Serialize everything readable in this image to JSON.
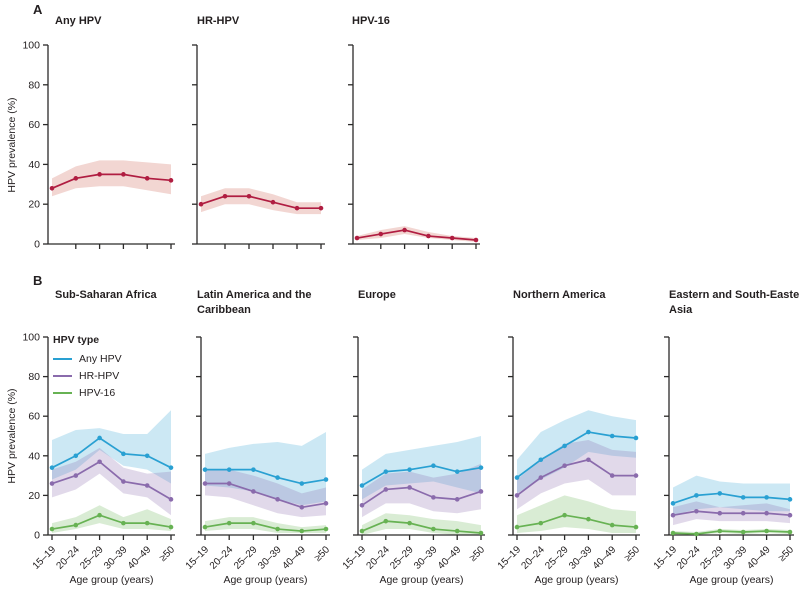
{
  "panels": {
    "a_label": "A",
    "b_label": "B"
  },
  "axes": {
    "y_title": "HPV prevalence (%)",
    "x_title": "Age group (years)",
    "y_ticks": [
      0,
      20,
      40,
      60,
      80,
      100
    ],
    "y_range": [
      0,
      100
    ],
    "grid": "off"
  },
  "categories": [
    "15–19",
    "20–24",
    "25–29",
    "30–39",
    "40–49",
    "≥50"
  ],
  "colors": {
    "red_line": "#b01d41",
    "red_band": "#f2d6d2",
    "any_hpv": "#29a0d2",
    "any_hpv_band": "rgba(41,160,210,0.24)",
    "hr_hpv": "#8a6bac",
    "hr_hpv_band": "rgba(138,107,172,0.26)",
    "hpv16": "#67b253",
    "hpv16_band": "rgba(103,178,83,0.25)"
  },
  "legend": {
    "title": "HPV type",
    "items": [
      {
        "label": "Any HPV",
        "color": "#29a0d2"
      },
      {
        "label": "HR-HPV",
        "color": "#8a6bac"
      },
      {
        "label": "HPV-16",
        "color": "#67b253"
      }
    ]
  },
  "chart_data": [
    {
      "type": "line",
      "panel": "A",
      "title": "Any HPV",
      "xlabel": "",
      "ylabel": "HPV prevalence (%)",
      "ylim": [
        0,
        100
      ],
      "series": [
        {
          "name": "Any HPV",
          "color": "#b01d41",
          "band": "#f2d6d2",
          "values": [
            28,
            33,
            35,
            35,
            33,
            32
          ],
          "lo": [
            24,
            28,
            29,
            29,
            27,
            25
          ],
          "hi": [
            33,
            39,
            42,
            42,
            41,
            40
          ]
        }
      ]
    },
    {
      "type": "line",
      "panel": "A",
      "title": "HR-HPV",
      "xlabel": "",
      "ylabel": "",
      "ylim": [
        0,
        100
      ],
      "series": [
        {
          "name": "HR-HPV",
          "color": "#b01d41",
          "band": "#f2d6d2",
          "values": [
            20,
            24,
            24,
            21,
            18,
            18
          ],
          "lo": [
            16,
            20,
            20,
            17,
            15,
            15
          ],
          "hi": [
            24,
            28,
            28,
            25,
            21,
            21
          ]
        }
      ]
    },
    {
      "type": "line",
      "panel": "A",
      "title": "HPV-16",
      "xlabel": "",
      "ylabel": "",
      "ylim": [
        0,
        100
      ],
      "series": [
        {
          "name": "HPV-16",
          "color": "#b01d41",
          "band": "#f2d6d2",
          "values": [
            3,
            5,
            7,
            4,
            3,
            2
          ],
          "lo": [
            2,
            3,
            5,
            3,
            2,
            1
          ],
          "hi": [
            4,
            7,
            9,
            6,
            4,
            3
          ]
        }
      ]
    },
    {
      "type": "line",
      "panel": "B",
      "title": "Sub-Saharan Africa",
      "xlabel": "Age group (years)",
      "ylabel": "HPV prevalence (%)",
      "ylim": [
        0,
        100
      ],
      "legend_position": "top-left",
      "series": [
        {
          "name": "Any HPV",
          "color": "#29a0d2",
          "band": "rgba(41,160,210,0.24)",
          "values": [
            34,
            40,
            49,
            41,
            40,
            34
          ],
          "lo": [
            28,
            33,
            43,
            35,
            33,
            26
          ],
          "hi": [
            48,
            53,
            54,
            51,
            51,
            63
          ]
        },
        {
          "name": "HR-HPV",
          "color": "#8a6bac",
          "band": "rgba(138,107,172,0.26)",
          "values": [
            26,
            30,
            37,
            27,
            25,
            18
          ],
          "lo": [
            19,
            23,
            31,
            21,
            19,
            10
          ],
          "hi": [
            33,
            37,
            44,
            34,
            31,
            32
          ]
        },
        {
          "name": "HPV-16",
          "color": "#67b253",
          "band": "rgba(103,178,83,0.25)",
          "values": [
            3,
            5,
            10,
            6,
            6,
            4
          ],
          "lo": [
            1,
            3,
            6,
            3,
            3,
            2
          ],
          "hi": [
            6,
            9,
            15,
            9,
            13,
            8
          ]
        }
      ]
    },
    {
      "type": "line",
      "panel": "B",
      "title": "Latin America and the Caribbean",
      "xlabel": "Age group (years)",
      "ylabel": "",
      "ylim": [
        0,
        100
      ],
      "series": [
        {
          "name": "Any HPV",
          "color": "#29a0d2",
          "band": "rgba(41,160,210,0.24)",
          "values": [
            33,
            33,
            33,
            29,
            26,
            28
          ],
          "lo": [
            25,
            24,
            22,
            18,
            15,
            17
          ],
          "hi": [
            41,
            44,
            46,
            47,
            45,
            52
          ]
        },
        {
          "name": "HR-HPV",
          "color": "#8a6bac",
          "band": "rgba(138,107,172,0.26)",
          "values": [
            26,
            26,
            22,
            18,
            14,
            16
          ],
          "lo": [
            20,
            19,
            15,
            11,
            9,
            10
          ],
          "hi": [
            33,
            33,
            30,
            26,
            21,
            24
          ]
        },
        {
          "name": "HPV-16",
          "color": "#67b253",
          "band": "rgba(103,178,83,0.25)",
          "values": [
            4,
            6,
            6,
            3,
            2,
            3
          ],
          "lo": [
            2,
            3,
            3,
            1,
            1,
            1
          ],
          "hi": [
            7,
            9,
            9,
            6,
            4,
            5
          ]
        }
      ]
    },
    {
      "type": "line",
      "panel": "B",
      "title": "Europe",
      "xlabel": "Age group (years)",
      "ylabel": "",
      "ylim": [
        0,
        100
      ],
      "series": [
        {
          "name": "Any HPV",
          "color": "#29a0d2",
          "band": "rgba(41,160,210,0.24)",
          "values": [
            25,
            32,
            33,
            35,
            32,
            34
          ],
          "lo": [
            18,
            25,
            26,
            27,
            24,
            21
          ],
          "hi": [
            33,
            41,
            43,
            45,
            47,
            50
          ]
        },
        {
          "name": "HR-HPV",
          "color": "#8a6bac",
          "band": "rgba(138,107,172,0.26)",
          "values": [
            15,
            23,
            24,
            19,
            18,
            22
          ],
          "lo": [
            9,
            16,
            16,
            12,
            11,
            13
          ],
          "hi": [
            23,
            31,
            32,
            29,
            31,
            36
          ]
        },
        {
          "name": "HPV-16",
          "color": "#67b253",
          "band": "rgba(103,178,83,0.25)",
          "values": [
            2,
            7,
            6,
            3,
            2,
            1
          ],
          "lo": [
            0,
            3,
            3,
            1,
            0,
            0
          ],
          "hi": [
            5,
            11,
            10,
            8,
            7,
            5
          ]
        }
      ]
    },
    {
      "type": "line",
      "panel": "B",
      "title": "Northern America",
      "xlabel": "Age group (years)",
      "ylabel": "",
      "ylim": [
        0,
        100
      ],
      "series": [
        {
          "name": "Any HPV",
          "color": "#29a0d2",
          "band": "rgba(41,160,210,0.24)",
          "values": [
            29,
            38,
            45,
            52,
            50,
            49
          ],
          "lo": [
            21,
            28,
            34,
            42,
            40,
            39
          ],
          "hi": [
            38,
            52,
            58,
            63,
            60,
            58
          ]
        },
        {
          "name": "HR-HPV",
          "color": "#8a6bac",
          "band": "rgba(138,107,172,0.26)",
          "values": [
            20,
            29,
            35,
            38,
            30,
            30
          ],
          "lo": [
            13,
            21,
            26,
            28,
            20,
            20
          ],
          "hi": [
            28,
            38,
            46,
            48,
            43,
            42
          ]
        },
        {
          "name": "HPV-16",
          "color": "#67b253",
          "band": "rgba(103,178,83,0.25)",
          "values": [
            4,
            6,
            10,
            8,
            5,
            4
          ],
          "lo": [
            1,
            2,
            4,
            3,
            1,
            1
          ],
          "hi": [
            10,
            15,
            20,
            17,
            13,
            12
          ]
        }
      ]
    },
    {
      "type": "line",
      "panel": "B",
      "title": "Eastern and South-Eastern Asia",
      "xlabel": "Age group (years)",
      "ylabel": "",
      "ylim": [
        0,
        100
      ],
      "series": [
        {
          "name": "Any HPV",
          "color": "#29a0d2",
          "band": "rgba(41,160,210,0.24)",
          "values": [
            16,
            20,
            21,
            19,
            19,
            18
          ],
          "lo": [
            10,
            13,
            14,
            13,
            12,
            12
          ],
          "hi": [
            24,
            30,
            27,
            26,
            26,
            26
          ]
        },
        {
          "name": "HR-HPV",
          "color": "#8a6bac",
          "band": "rgba(138,107,172,0.26)",
          "values": [
            10,
            12,
            11,
            11,
            11,
            10
          ],
          "lo": [
            5,
            8,
            7,
            7,
            7,
            6
          ],
          "hi": [
            14,
            17,
            14,
            15,
            16,
            13
          ]
        },
        {
          "name": "HPV-16",
          "color": "#67b253",
          "band": "rgba(103,178,83,0.25)",
          "values": [
            1,
            0.5,
            2,
            1.5,
            2,
            1.5
          ],
          "lo": [
            0,
            0,
            1,
            0.5,
            1,
            0.5
          ],
          "hi": [
            2,
            1.5,
            3,
            2.5,
            3,
            2.5
          ]
        }
      ]
    }
  ]
}
